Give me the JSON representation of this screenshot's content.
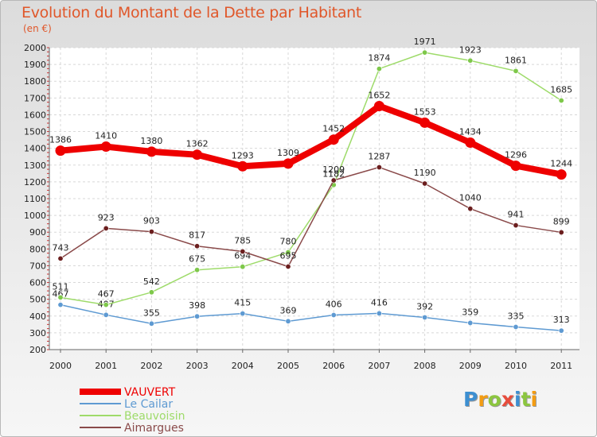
{
  "header": {
    "title": "Evolution du Montant de la Dette par Habitant",
    "unit": "(en €)"
  },
  "logo": {
    "letters": [
      {
        "ch": "P",
        "color": "#3d8fd1"
      },
      {
        "ch": "r",
        "color": "#f39c12"
      },
      {
        "ch": "o",
        "color": "#8cc63f"
      },
      {
        "ch": "x",
        "color": "#e74c3c"
      },
      {
        "ch": "i",
        "color": "#3d8fd1"
      },
      {
        "ch": "t",
        "color": "#8cc63f"
      },
      {
        "ch": "i",
        "color": "#f39c12"
      }
    ]
  },
  "chart_data": {
    "type": "line",
    "title": "Evolution du Montant de la Dette par Habitant",
    "ylabel": "(en €)",
    "xlabel": "",
    "x": [
      "2000",
      "2001",
      "2002",
      "2003",
      "2004",
      "2005",
      "2006",
      "2007",
      "2008",
      "2009",
      "2010",
      "2011"
    ],
    "ylim": [
      200,
      2000
    ],
    "yticks": [
      200,
      300,
      400,
      500,
      600,
      700,
      800,
      900,
      1000,
      1100,
      1200,
      1300,
      1400,
      1500,
      1600,
      1700,
      1800,
      1900,
      2000
    ],
    "grid": true,
    "legend_position": "bottom-left",
    "series": [
      {
        "name": "Le Cailar",
        "color": "#5e9ad2",
        "point_color": "#5e9ad2",
        "width": "thin",
        "values": [
          467,
          407,
          355,
          398,
          415,
          369,
          406,
          416,
          392,
          359,
          335,
          313
        ],
        "labels": [
          "467",
          "407",
          "355",
          "398",
          "415",
          "369",
          "406",
          "416",
          "392",
          "359",
          "335",
          "313"
        ]
      },
      {
        "name": "Beauvoisin",
        "color": "#9edb6a",
        "point_color": "#7ec84a",
        "width": "thin",
        "values": [
          511,
          467,
          542,
          675,
          694,
          780,
          1182,
          1874,
          1971,
          1923,
          1861,
          1685
        ],
        "labels": [
          "511",
          "467",
          "542",
          "675",
          "694",
          "780",
          "1182",
          "1874",
          "1971",
          "1923",
          "1861",
          "1685"
        ]
      },
      {
        "name": "Aimargues",
        "color": "#8a4a4a",
        "point_color": "#6b1e1e",
        "width": "thin",
        "values": [
          743,
          923,
          903,
          817,
          785,
          695,
          1209,
          1287,
          1190,
          1040,
          941,
          899
        ],
        "labels": [
          "743",
          "923",
          "903",
          "817",
          "785",
          "695",
          "1209",
          "1287",
          "1190",
          "1040",
          "941",
          "899"
        ]
      },
      {
        "name": "VAUVERT",
        "color": "#ee0000",
        "point_color": "#ee0000",
        "width": "thick",
        "values": [
          1386,
          1410,
          1380,
          1362,
          1293,
          1309,
          1452,
          1652,
          1553,
          1434,
          1296,
          1244
        ],
        "labels": [
          "1386",
          "1410",
          "1380",
          "1362",
          "1293",
          "1309",
          "1452",
          "1652",
          "1553",
          "1434",
          "1296",
          "1244"
        ]
      }
    ],
    "legend_order": [
      "VAUVERT",
      "Le Cailar",
      "Beauvoisin",
      "Aimargues"
    ]
  }
}
